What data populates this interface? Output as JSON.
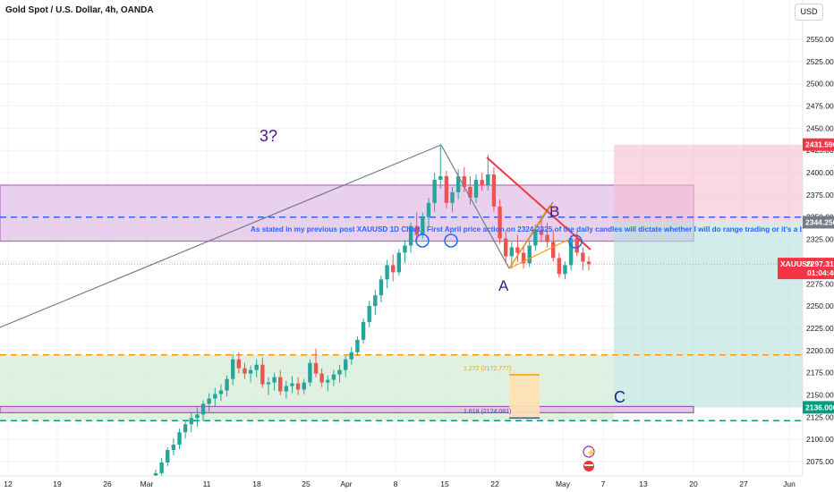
{
  "header": {
    "symbol_title": "Gold Spot / U.S. Dollar, 4h, OANDA",
    "currency": "USD"
  },
  "colors": {
    "up": "#26a69a",
    "down": "#ef5350",
    "range_box": "#9c27b0",
    "dashed_blue": "#2962ff",
    "dashed_orange": "#ff9800",
    "dashed_green": "#089981",
    "target_zone": "#a5d6a7",
    "stop_zone": "#f8bbd0",
    "trendline": "#f23645"
  },
  "chart_data": {
    "type": "candlestick",
    "y_axis": {
      "range": [
        2070,
        2590
      ],
      "ticks": [
        2075,
        2100,
        2125,
        2150,
        2175,
        2200,
        2225,
        2250,
        2275,
        2300,
        2325,
        2350,
        2375,
        2400,
        2425,
        2450,
        2475,
        2500,
        2525,
        2550
      ],
      "tick_labels": [
        "2075.000",
        "2100.000",
        "2125.000",
        "2150.000",
        "2175.000",
        "2200.000",
        "2225.000",
        "2250.000",
        "2275.000",
        "2300.000",
        "2325.000",
        "2350.000",
        "2375.000",
        "2400.000",
        "2425.000",
        "2450.000",
        "2475.000",
        "2500.000",
        "2525.000",
        "2550.000"
      ]
    },
    "x_axis": {
      "ticks": [
        "12",
        "19",
        "26",
        "Mar",
        "11",
        "18",
        "25",
        "Apr",
        "8",
        "15",
        "22",
        "May",
        "7",
        "13",
        "20",
        "27",
        "Jun"
      ]
    },
    "price_tags": [
      {
        "label": "2431.590",
        "value": 2431.59,
        "color": "#f23645"
      },
      {
        "label": "2344.250",
        "value": 2344.25,
        "color": "#787b86"
      },
      {
        "label": "XAUUSD",
        "price": "2297.310",
        "countdown": "01:04:40",
        "value": 2297.31,
        "color": "#f23645"
      },
      {
        "label": "2136.000",
        "value": 2136.0,
        "color": "#089981"
      }
    ],
    "levels": {
      "range_box": [
        2323,
        2386
      ],
      "blue_dashed": 2350,
      "orange_dashed": 2195,
      "green_dashed": 2121,
      "lower_purple_box": [
        2130,
        2137
      ]
    },
    "position": {
      "entry": 2344.25,
      "stop": 2431.59,
      "target": 2136.0
    },
    "fib": [
      {
        "label": "1.272 (2172.777)",
        "value": 2172.777
      },
      {
        "label": "1.618 (2124.081)",
        "value": 2124.081
      }
    ],
    "annotations": {
      "wave_3": "3?",
      "wave_a": "A",
      "wave_b": "B",
      "wave_c": "C",
      "note": "As stated in my previous post XAUUSD 1D Chart - First April price action on 2324-2325 of the daily candles will dictate whether I will do range trading or it's a breakout."
    },
    "candles": [
      [
        2052,
        2066,
        2048,
        2062
      ],
      [
        2062,
        2079,
        2057,
        2074
      ],
      [
        2074,
        2091,
        2070,
        2088
      ],
      [
        2088,
        2101,
        2082,
        2094
      ],
      [
        2094,
        2112,
        2089,
        2108
      ],
      [
        2108,
        2122,
        2101,
        2117
      ],
      [
        2117,
        2130,
        2108,
        2124
      ],
      [
        2124,
        2136,
        2114,
        2128
      ],
      [
        2128,
        2144,
        2120,
        2140
      ],
      [
        2140,
        2152,
        2131,
        2146
      ],
      [
        2146,
        2158,
        2137,
        2151
      ],
      [
        2151,
        2162,
        2143,
        2155
      ],
      [
        2155,
        2172,
        2148,
        2168
      ],
      [
        2168,
        2196,
        2161,
        2190
      ],
      [
        2190,
        2198,
        2174,
        2180
      ],
      [
        2180,
        2186,
        2168,
        2174
      ],
      [
        2174,
        2183,
        2164,
        2178
      ],
      [
        2178,
        2190,
        2170,
        2184
      ],
      [
        2184,
        2192,
        2158,
        2162
      ],
      [
        2162,
        2170,
        2150,
        2164
      ],
      [
        2164,
        2175,
        2155,
        2170
      ],
      [
        2170,
        2178,
        2150,
        2154
      ],
      [
        2154,
        2166,
        2146,
        2160
      ],
      [
        2160,
        2171,
        2152,
        2163
      ],
      [
        2163,
        2170,
        2150,
        2156
      ],
      [
        2156,
        2168,
        2151,
        2164
      ],
      [
        2164,
        2190,
        2160,
        2186
      ],
      [
        2186,
        2202,
        2170,
        2174
      ],
      [
        2174,
        2180,
        2159,
        2164
      ],
      [
        2164,
        2172,
        2154,
        2167
      ],
      [
        2167,
        2178,
        2160,
        2173
      ],
      [
        2173,
        2184,
        2164,
        2178
      ],
      [
        2178,
        2194,
        2170,
        2190
      ],
      [
        2190,
        2204,
        2184,
        2198
      ],
      [
        2198,
        2216,
        2194,
        2212
      ],
      [
        2212,
        2236,
        2208,
        2232
      ],
      [
        2232,
        2256,
        2226,
        2250
      ],
      [
        2250,
        2268,
        2240,
        2262
      ],
      [
        2262,
        2284,
        2254,
        2280
      ],
      [
        2280,
        2302,
        2270,
        2296
      ],
      [
        2296,
        2308,
        2278,
        2288
      ],
      [
        2288,
        2314,
        2284,
        2310
      ],
      [
        2310,
        2324,
        2298,
        2318
      ],
      [
        2318,
        2344,
        2310,
        2340
      ],
      [
        2340,
        2356,
        2322,
        2330
      ],
      [
        2330,
        2355,
        2326,
        2350
      ],
      [
        2350,
        2372,
        2340,
        2366
      ],
      [
        2366,
        2400,
        2356,
        2392
      ],
      [
        2392,
        2432,
        2382,
        2396
      ],
      [
        2396,
        2402,
        2360,
        2366
      ],
      [
        2366,
        2384,
        2356,
        2378
      ],
      [
        2378,
        2404,
        2370,
        2396
      ],
      [
        2396,
        2406,
        2378,
        2384
      ],
      [
        2384,
        2396,
        2364,
        2372
      ],
      [
        2372,
        2398,
        2366,
        2392
      ],
      [
        2392,
        2400,
        2380,
        2386
      ],
      [
        2386,
        2420,
        2380,
        2398
      ],
      [
        2398,
        2406,
        2356,
        2362
      ],
      [
        2362,
        2370,
        2320,
        2326
      ],
      [
        2326,
        2336,
        2298,
        2306
      ],
      [
        2306,
        2322,
        2292,
        2316
      ],
      [
        2316,
        2330,
        2300,
        2310
      ],
      [
        2310,
        2318,
        2292,
        2298
      ],
      [
        2298,
        2324,
        2294,
        2318
      ],
      [
        2318,
        2342,
        2312,
        2336
      ],
      [
        2336,
        2352,
        2322,
        2330
      ],
      [
        2330,
        2344,
        2316,
        2322
      ],
      [
        2322,
        2336,
        2300,
        2304
      ],
      [
        2304,
        2310,
        2282,
        2286
      ],
      [
        2286,
        2300,
        2280,
        2296
      ],
      [
        2296,
        2330,
        2290,
        2326
      ],
      [
        2326,
        2334,
        2306,
        2310
      ],
      [
        2310,
        2316,
        2290,
        2300
      ],
      [
        2300,
        2306,
        2290,
        2297
      ]
    ]
  }
}
